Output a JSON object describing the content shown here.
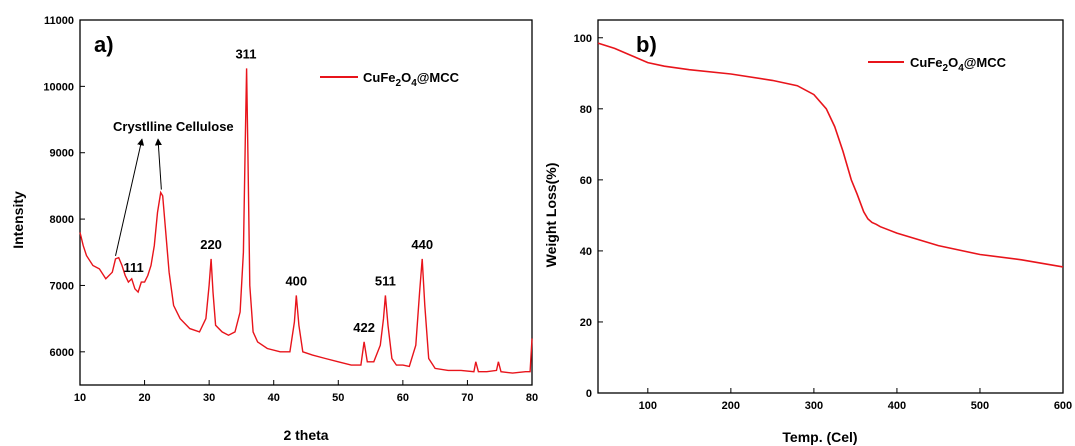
{
  "chart_data": [
    {
      "type": "line",
      "panel_label": "a)",
      "xlabel": "2 theta",
      "ylabel": "Intensity",
      "xlim": [
        10,
        80
      ],
      "ylim": [
        5500,
        11000
      ],
      "xticks": [
        10,
        20,
        30,
        40,
        50,
        60,
        70,
        80
      ],
      "yticks": [
        6000,
        7000,
        8000,
        9000,
        10000,
        11000
      ],
      "color": "#e8141b",
      "series": [
        {
          "name": "CuFe2O4@MCC",
          "x": [
            10,
            10.5,
            11,
            12,
            13,
            14,
            15,
            15.5,
            16,
            16.5,
            17,
            17.5,
            18,
            18.5,
            19,
            19.5,
            20,
            20.5,
            21,
            21.5,
            22,
            22.5,
            22.8,
            23.2,
            23.8,
            24.5,
            25.5,
            27,
            28.5,
            29.5,
            30,
            30.3,
            30.6,
            31,
            32,
            33,
            34,
            34.8,
            35.3,
            35.6,
            35.8,
            36.0,
            36.3,
            36.8,
            37.5,
            39,
            41,
            42.5,
            43.2,
            43.5,
            43.9,
            44.5,
            46,
            48,
            50,
            52,
            53.5,
            54.0,
            54.5,
            55.5,
            56.5,
            57.0,
            57.3,
            57.7,
            58.3,
            59,
            60,
            61,
            62,
            62.6,
            63.0,
            63.4,
            64,
            65,
            67,
            69,
            71,
            71.3,
            71.7,
            73,
            74.5,
            74.8,
            75.2,
            77,
            79,
            79.7,
            80
          ],
          "y": [
            7800,
            7600,
            7450,
            7300,
            7250,
            7100,
            7200,
            7400,
            7420,
            7300,
            7150,
            7050,
            7100,
            6950,
            6900,
            7050,
            7050,
            7150,
            7300,
            7600,
            8100,
            8400,
            8350,
            7900,
            7200,
            6700,
            6500,
            6350,
            6300,
            6500,
            7000,
            7400,
            6900,
            6400,
            6300,
            6250,
            6300,
            6600,
            7500,
            9200,
            10270,
            9000,
            7000,
            6300,
            6150,
            6050,
            6000,
            6000,
            6450,
            6850,
            6400,
            6000,
            5950,
            5900,
            5850,
            5800,
            5800,
            6150,
            5850,
            5850,
            6100,
            6500,
            6850,
            6400,
            5900,
            5800,
            5800,
            5780,
            6100,
            6900,
            7400,
            6700,
            5900,
            5750,
            5720,
            5720,
            5700,
            5850,
            5700,
            5700,
            5720,
            5850,
            5700,
            5680,
            5700,
            5700,
            6200
          ]
        }
      ],
      "peaks": [
        {
          "label": "111",
          "x": 18.3,
          "y": 7050
        },
        {
          "label": "220",
          "x": 30.3,
          "y": 7400
        },
        {
          "label": "311",
          "x": 35.7,
          "y": 10270
        },
        {
          "label": "400",
          "x": 43.5,
          "y": 6850
        },
        {
          "label": "422",
          "x": 54.0,
          "y": 6150
        },
        {
          "label": "511",
          "x": 57.3,
          "y": 6850
        },
        {
          "label": "440",
          "x": 63.0,
          "y": 7400
        }
      ],
      "annotation": {
        "text": "Crystlline Cellulose",
        "targets": [
          {
            "x": 15.5,
            "y": 7400
          },
          {
            "x": 22.6,
            "y": 8400
          }
        ]
      },
      "legend": {
        "base": "CuFe",
        "sub1": "2",
        "mid": "O",
        "sub2": "4",
        "tail": "@MCC",
        "position": "top-right"
      }
    },
    {
      "type": "line",
      "panel_label": "b)",
      "xlabel": "Temp. (Cel)",
      "ylabel": "Weight Loss(%)",
      "xlim": [
        40,
        600
      ],
      "ylim": [
        0,
        105
      ],
      "xticks": [
        100,
        200,
        300,
        400,
        500,
        600
      ],
      "yticks": [
        0,
        20,
        40,
        60,
        80,
        100
      ],
      "color": "#e8141b",
      "series": [
        {
          "name": "CuFe2O4@MCC",
          "x": [
            40,
            60,
            80,
            100,
            120,
            150,
            200,
            250,
            280,
            300,
            315,
            325,
            335,
            345,
            352,
            360,
            365,
            370,
            375,
            380,
            400,
            450,
            500,
            550,
            600
          ],
          "y": [
            98.5,
            97,
            95,
            93,
            92,
            91,
            89.8,
            88,
            86.5,
            84,
            80,
            75,
            68,
            60,
            56,
            51,
            49,
            48,
            47.5,
            46.8,
            45,
            41.5,
            39,
            37.5,
            35.5
          ]
        }
      ],
      "legend": {
        "base": "CuFe",
        "sub1": "2",
        "mid": "O",
        "sub2": "4",
        "tail": "@MCC",
        "position": "top-right"
      }
    }
  ]
}
